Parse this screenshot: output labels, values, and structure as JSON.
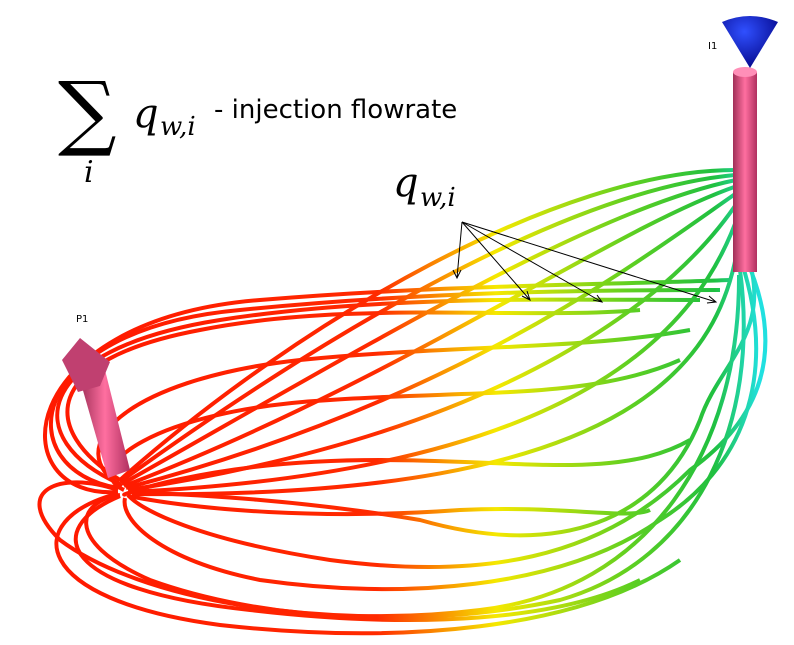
{
  "formula": {
    "sum": "∑",
    "index": "i",
    "symbol": "q",
    "subscript": "w,i",
    "description": "- injection flowrate"
  },
  "annotation": {
    "symbol": "q",
    "subscript": "w,i"
  },
  "wells": [
    {
      "label": "P1"
    },
    {
      "label": "I1"
    }
  ]
}
